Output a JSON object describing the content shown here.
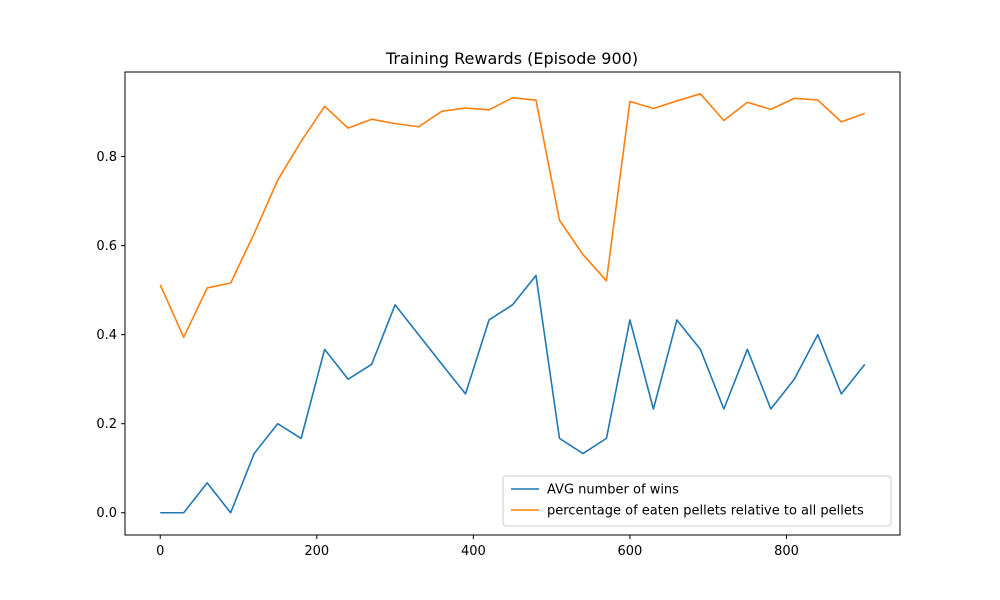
{
  "chart_data": {
    "type": "line",
    "title": "Training Rewards (Episode 900)",
    "xlabel": "",
    "ylabel": "",
    "xlim": [
      -45,
      945
    ],
    "ylim": [
      -0.05,
      0.99
    ],
    "xticks": [
      0,
      200,
      400,
      600,
      800
    ],
    "yticks": [
      0.0,
      0.2,
      0.4,
      0.6,
      0.8
    ],
    "xtick_labels": [
      "0",
      "200",
      "400",
      "600",
      "800"
    ],
    "ytick_labels": [
      "0.0",
      "0.2",
      "0.4",
      "0.6",
      "0.8"
    ],
    "grid": false,
    "legend_position": "lower-right",
    "x": [
      0,
      30,
      60,
      90,
      120,
      150,
      180,
      210,
      240,
      270,
      300,
      330,
      360,
      390,
      420,
      450,
      480,
      510,
      540,
      570,
      600,
      630,
      660,
      690,
      720,
      750,
      780,
      810,
      840,
      870,
      900
    ],
    "series": [
      {
        "name": "AVG number of wins",
        "color": "#1f77b4",
        "values": [
          0.0,
          0.0,
          0.067,
          0.0,
          0.133,
          0.2,
          0.167,
          0.367,
          0.3,
          0.333,
          0.467,
          0.4,
          0.333,
          0.267,
          0.433,
          0.467,
          0.533,
          0.167,
          0.133,
          0.167,
          0.433,
          0.233,
          0.433,
          0.367,
          0.233,
          0.367,
          0.233,
          0.3,
          0.4,
          0.267,
          0.333
        ]
      },
      {
        "name": "percentage of eaten pellets relative to all pellets",
        "color": "#ff7f0e",
        "values": [
          0.512,
          0.394,
          0.505,
          0.516,
          0.627,
          0.747,
          0.834,
          0.913,
          0.864,
          0.884,
          0.874,
          0.867,
          0.902,
          0.909,
          0.905,
          0.932,
          0.927,
          0.657,
          0.58,
          0.521,
          0.924,
          0.908,
          0.925,
          0.941,
          0.881,
          0.922,
          0.906,
          0.931,
          0.927,
          0.878,
          0.897
        ]
      }
    ]
  }
}
